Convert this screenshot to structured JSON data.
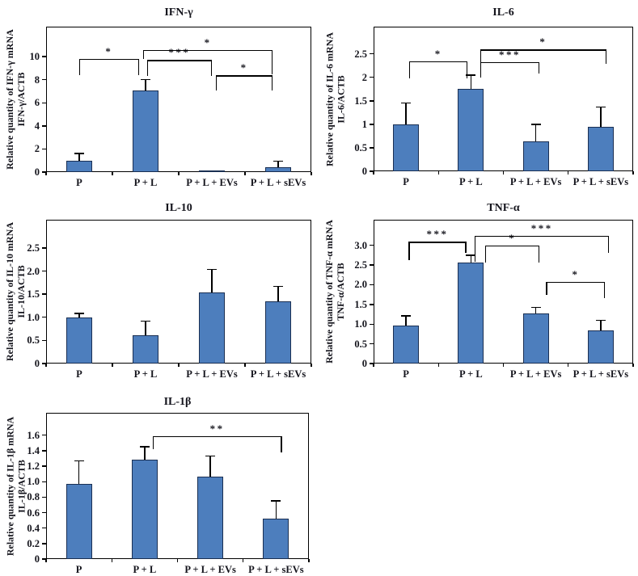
{
  "figure": {
    "background": "#ffffff",
    "description": "Five bar-chart panels showing relative cytokine mRNA quantities normalized to ACTB"
  },
  "style": {
    "bar_fill": "#4d7ebd",
    "bar_border": "#1a2f52",
    "axis_color": "#000000",
    "text_color": "#14141c"
  },
  "chart_data": [
    {
      "type": "bar",
      "title": "IFN-γ",
      "ylabel_lines": [
        "Relative quantity of IFN-γ mRNA",
        "IFN-γ/ACTB"
      ],
      "categories": [
        "P",
        "P + L",
        "P + L + EVs",
        "P + L + sEVs"
      ],
      "values": [
        1.0,
        7.1,
        0.05,
        0.45
      ],
      "errors_upper": [
        0.6,
        0.9,
        0,
        0.5
      ],
      "ylim": [
        0,
        12.6
      ],
      "ytick_values": [
        0,
        2,
        4,
        6,
        8,
        10
      ],
      "ytick_labels": [
        "0",
        "2",
        "4",
        "6",
        "8",
        "10"
      ],
      "grid": false,
      "significance": [
        {
          "from": 0,
          "to": 1,
          "from_dx": 0.0,
          "to_dx": -0.1,
          "y": 9.8,
          "leg_from": 8.4,
          "leg_to": 8.4,
          "label": "*"
        },
        {
          "from": 1,
          "to": 2,
          "from_dx": 0.02,
          "to_dx": 0.0,
          "y": 9.7,
          "leg_from": 8.3,
          "leg_to": 8.3,
          "label": "***"
        },
        {
          "from": 1,
          "to": 3,
          "from_dx": -0.04,
          "to_dx": -0.08,
          "y": 10.6,
          "leg_from": 9.8,
          "leg_to": 8.45,
          "label": "*"
        },
        {
          "from": 2,
          "to": 3,
          "from_dx": 0.06,
          "to_dx": -0.08,
          "y": 8.37,
          "leg_from": 7.05,
          "leg_to": 7.05,
          "label": "*"
        }
      ]
    },
    {
      "type": "bar",
      "title": "IL-6",
      "ylabel_lines": [
        "Relative quantity of IL-6 mRNA",
        "IL-6/ACTB"
      ],
      "categories": [
        "P",
        "P + L",
        "P + L + EVs",
        "P + L + sEVs"
      ],
      "values": [
        1.0,
        1.75,
        0.63,
        0.95
      ],
      "errors_upper": [
        0.45,
        0.3,
        0.37,
        0.42
      ],
      "ylim": [
        0,
        3.08
      ],
      "ytick_values": [
        0,
        0.5,
        1,
        1.5,
        2,
        2.5
      ],
      "ytick_labels": [
        "0",
        "0.5",
        "1",
        "1.5",
        "2",
        "2.5"
      ],
      "grid": false,
      "significance": [
        {
          "from": 0,
          "to": 1,
          "from_dx": 0.05,
          "to_dx": -0.05,
          "y": 2.34,
          "leg_from": 1.98,
          "leg_to": 1.98,
          "label": "*"
        },
        {
          "from": 1,
          "to": 2,
          "from_dx": 0.14,
          "to_dx": 0.06,
          "y": 2.32,
          "leg_from": 2.0,
          "leg_to": 2.08,
          "label": "***"
        },
        {
          "from": 1,
          "to": 3,
          "from_dx": 0.14,
          "to_dx": 0.09,
          "y": 2.59,
          "leg_from": 2.33,
          "leg_to": 2.28,
          "label": "*"
        }
      ]
    },
    {
      "type": "bar",
      "title": "IL-10",
      "ylabel_lines": [
        "Relative quantity of IL-10 mRNA",
        "IL-10/ACTB"
      ],
      "categories": [
        "P",
        "P + L",
        "P + L + EVs",
        "P + L + sEVs"
      ],
      "values": [
        1.0,
        0.62,
        1.54,
        1.35
      ],
      "errors_upper": [
        0.08,
        0.3,
        0.5,
        0.32
      ],
      "ylim": [
        0,
        3.11
      ],
      "ytick_values": [
        0,
        0.5,
        1.0,
        1.5,
        2.0,
        2.5
      ],
      "ytick_labels": [
        "0",
        "0.5",
        "1.0",
        "1.5",
        "2.0",
        "2.5"
      ],
      "grid": false,
      "significance": []
    },
    {
      "type": "bar",
      "title": "TNF-α",
      "ylabel_lines": [
        "Relative quantity of TNF-α mRNA",
        "TNF-α/ACTB"
      ],
      "categories": [
        "P",
        "P + L",
        "P + L + EVs",
        "P + L + sEVs"
      ],
      "values": [
        0.97,
        2.56,
        1.28,
        0.84
      ],
      "errors_upper": [
        0.24,
        0.19,
        0.14,
        0.26
      ],
      "ylim": [
        0,
        3.65
      ],
      "ytick_values": [
        0,
        0.5,
        1.0,
        1.5,
        2.0,
        2.5,
        3.0
      ],
      "ytick_labels": [
        "0",
        "0.5",
        "1.0",
        "1.5",
        "2.0",
        "2.5",
        "3.0"
      ],
      "grid": false,
      "significance": [
        {
          "from": 0,
          "to": 1,
          "from_dx": 0.04,
          "to_dx": -0.07,
          "y": 3.09,
          "leg_from": 2.62,
          "leg_to": 2.8,
          "label": "***"
        },
        {
          "from": 1,
          "to": 2,
          "from_dx": 0.22,
          "to_dx": 0.06,
          "y": 3.0,
          "leg_from": 2.56,
          "leg_to": 2.56,
          "label": "*"
        },
        {
          "from": 1,
          "to": 3,
          "from_dx": 0.06,
          "to_dx": 0.13,
          "y": 3.24,
          "leg_from": 2.59,
          "leg_to": 2.8,
          "label": "***"
        },
        {
          "from": 2,
          "to": 3,
          "from_dx": 0.16,
          "to_dx": 0.07,
          "y": 2.08,
          "leg_from": 1.74,
          "leg_to": 1.67,
          "label": "*"
        }
      ]
    },
    {
      "type": "bar",
      "title": "IL-1β",
      "ylabel_lines": [
        "Relative quantity of IL-1β mRNA",
        "IL-1β/ACTB"
      ],
      "categories": [
        "P",
        "P + L",
        "P + L + EVs",
        "P + L + sEVs"
      ],
      "values": [
        0.97,
        1.28,
        1.06,
        0.52
      ],
      "errors_upper": [
        0.3,
        0.17,
        0.27,
        0.23
      ],
      "ylim": [
        0,
        1.89
      ],
      "ytick_values": [
        0,
        0.2,
        0.4,
        0.6,
        0.8,
        1.0,
        1.2,
        1.4,
        1.6
      ],
      "ytick_labels": [
        "0",
        "0.2",
        "0.4",
        "0.6",
        "0.8",
        "1.0",
        "1.2",
        "1.4",
        "1.6"
      ],
      "grid": false,
      "significance": [
        {
          "from": 1,
          "to": 3,
          "from_dx": 0.12,
          "to_dx": 0.09,
          "y": 1.59,
          "leg_from": 1.42,
          "leg_to": 1.38,
          "label": "**"
        }
      ]
    }
  ]
}
